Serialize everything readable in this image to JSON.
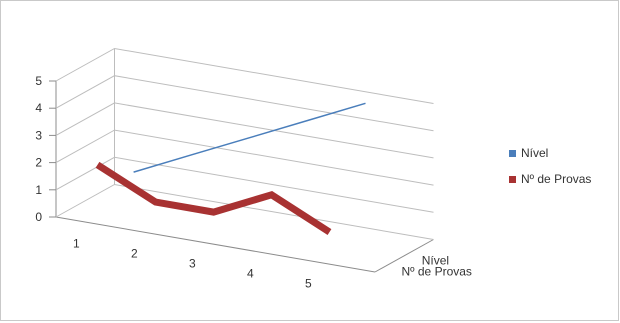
{
  "chart_data": {
    "type": "line",
    "title": "",
    "xlabel": "",
    "ylabel": "",
    "categories": [
      "1",
      "2",
      "3",
      "4",
      "5"
    ],
    "ylim": [
      0,
      5
    ],
    "yticks": [
      "0",
      "1",
      "2",
      "3",
      "4",
      "5"
    ],
    "grid": true,
    "legend_position": "right",
    "series": [
      {
        "name": "Nível",
        "values": [
          1,
          2,
          3,
          4,
          5
        ],
        "color": "#4a7ebb"
      },
      {
        "name": "Nº de Provas",
        "values": [
          2,
          1,
          1,
          2,
          1
        ],
        "color": "#a83232"
      }
    ]
  }
}
